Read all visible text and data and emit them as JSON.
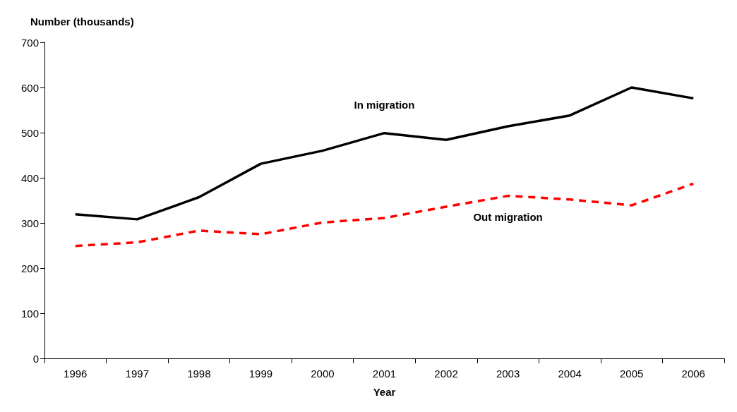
{
  "chart_data": {
    "type": "line",
    "ylabel": "Number (thousands)",
    "xlabel": "Year",
    "categories": [
      "1996",
      "1997",
      "1998",
      "1999",
      "2000",
      "2001",
      "2002",
      "2003",
      "2004",
      "2005",
      "2006"
    ],
    "series": [
      {
        "name": "In migration",
        "color": "#000000",
        "line_style": "solid",
        "values": [
          319,
          308,
          357,
          431,
          460,
          499,
          484,
          514,
          538,
          600,
          576
        ]
      },
      {
        "name": "Out migration",
        "color": "#ff0000",
        "line_style": "dashed",
        "values": [
          249,
          257,
          283,
          275,
          301,
          311,
          336,
          360,
          352,
          339,
          387
        ]
      }
    ],
    "ylim": [
      0,
      700
    ],
    "yticks": [
      0,
      100,
      200,
      300,
      400,
      500,
      600,
      700
    ],
    "grid": false,
    "legend": false,
    "marker": "none"
  }
}
